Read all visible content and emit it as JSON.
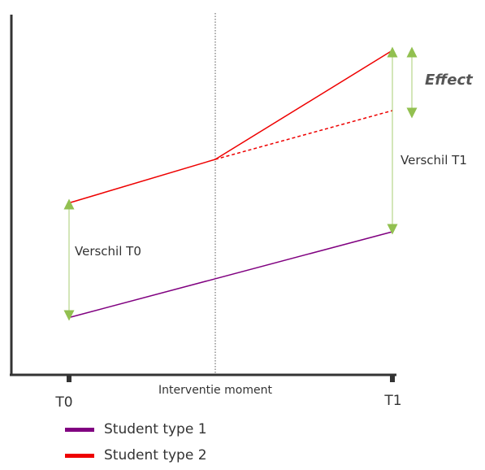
{
  "labels": {
    "verschil_t0": "Verschil T0",
    "verschil_t1": "Verschil T1",
    "effect": "Effect",
    "intervention": "Interventie moment",
    "t0": "T0",
    "t1": "T1"
  },
  "legend": [
    {
      "label": "Student type 1",
      "color": "#800080"
    },
    {
      "label": "Student type 2",
      "color": "#ee0000"
    }
  ],
  "colors": {
    "axis": "#333333",
    "arrow": "#92c050",
    "intervention_line": "#555555"
  }
}
